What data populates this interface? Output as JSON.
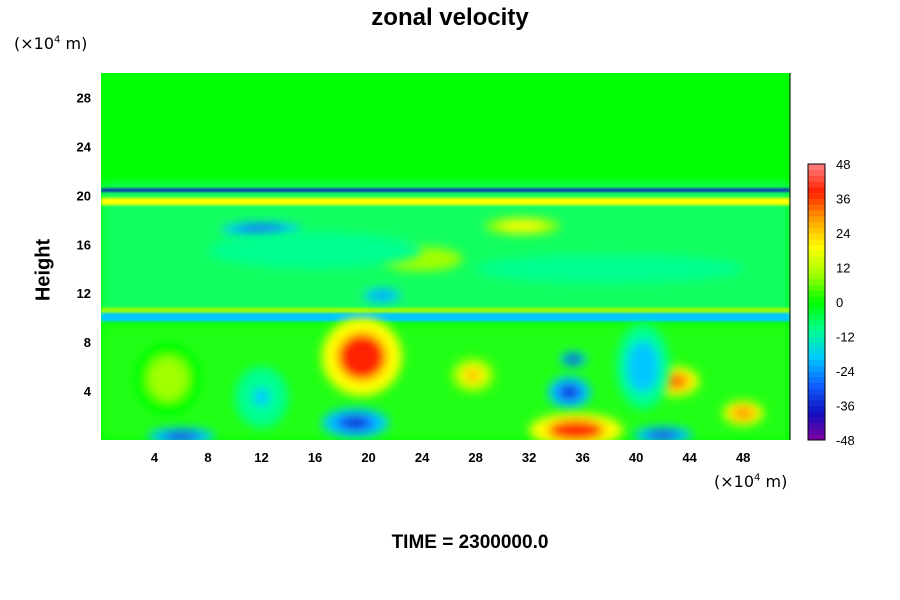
{
  "chart_data": {
    "type": "heatmap",
    "title": "zonal velocity",
    "ylabel": "Height",
    "xunit": "(×10",
    "xunit_exp": "4",
    "xunit_tail": " m)",
    "yunit": "(×10",
    "yunit_exp": "4",
    "yunit_tail": " m)",
    "footer": "TIME = 2300000.0",
    "xlim": [
      0,
      51.5
    ],
    "ylim": [
      0,
      30
    ],
    "x_ticks": [
      4,
      8,
      12,
      16,
      20,
      24,
      28,
      32,
      36,
      40,
      44,
      48
    ],
    "y_ticks": [
      4,
      8,
      12,
      16,
      20,
      24,
      28
    ],
    "colorbar": {
      "min": -48,
      "max": 48,
      "ticks": [
        48,
        36,
        24,
        12,
        0,
        -12,
        -24,
        -36,
        -48
      ],
      "colors": [
        "#8000a0",
        "#1010c0",
        "#1060ff",
        "#00c8ff",
        "#00ff90",
        "#00ff00",
        "#a0ff00",
        "#ffff00",
        "#ffa000",
        "#ff2000",
        "#ff8080"
      ]
    },
    "features": [
      {
        "x": 0,
        "y": 20.3,
        "w": 51.5,
        "h": 0.25,
        "value": -36,
        "kind": "band"
      },
      {
        "x": 0,
        "y": 19.2,
        "w": 51.5,
        "h": 0.6,
        "value": 18,
        "kind": "band"
      },
      {
        "x": 0,
        "y": 10.2,
        "w": 51.5,
        "h": 0.6,
        "value": 12,
        "kind": "band"
      },
      {
        "x": 0,
        "y": 9.7,
        "w": 51.5,
        "h": 0.7,
        "value": -18,
        "kind": "band"
      },
      {
        "x": 19.5,
        "y": 6.8,
        "rx": 3.0,
        "ry": 3.2,
        "value": 40
      },
      {
        "x": 27.8,
        "y": 5.3,
        "rx": 1.6,
        "ry": 1.4,
        "value": 26
      },
      {
        "x": 35.0,
        "y": 3.9,
        "rx": 1.6,
        "ry": 1.3,
        "value": -34
      },
      {
        "x": 35.3,
        "y": 6.6,
        "rx": 1.0,
        "ry": 0.6,
        "value": -40
      },
      {
        "x": 43.0,
        "y": 4.8,
        "rx": 1.7,
        "ry": 1.2,
        "value": 34
      },
      {
        "x": 48.0,
        "y": 2.2,
        "rx": 1.5,
        "ry": 1.0,
        "value": 30
      },
      {
        "x": 19.0,
        "y": 1.4,
        "rx": 2.5,
        "ry": 1.2,
        "value": -36
      },
      {
        "x": 6.0,
        "y": 0.3,
        "rx": 2.5,
        "ry": 0.7,
        "value": -38
      },
      {
        "x": 35.5,
        "y": 0.8,
        "rx": 3.5,
        "ry": 1.4,
        "value": 40
      },
      {
        "x": 42.0,
        "y": 0.4,
        "rx": 2.2,
        "ry": 0.7,
        "value": -38
      },
      {
        "x": 12.0,
        "y": 17.2,
        "rx": 3.0,
        "ry": 0.6,
        "value": -30
      },
      {
        "x": 21.0,
        "y": 11.8,
        "rx": 1.4,
        "ry": 0.6,
        "value": -28
      },
      {
        "x": 31.5,
        "y": 17.5,
        "rx": 2.8,
        "ry": 0.7,
        "value": 22
      },
      {
        "x": 5.0,
        "y": 5.0,
        "rx": 2.5,
        "ry": 3.0,
        "value": 8
      },
      {
        "x": 12.0,
        "y": 3.5,
        "rx": 2.0,
        "ry": 2.5,
        "value": -16
      },
      {
        "x": 40.5,
        "y": 6.0,
        "rx": 2.0,
        "ry": 3.5,
        "value": -18
      },
      {
        "x": 24.0,
        "y": 14.8,
        "rx": 3.0,
        "ry": 1.0,
        "value": 10
      },
      {
        "x": 16.0,
        "y": 15.5,
        "rx": 8.0,
        "ry": 1.5,
        "value": -10
      },
      {
        "x": 38.0,
        "y": 14.0,
        "rx": 10.0,
        "ry": 1.2,
        "value": -12
      }
    ]
  }
}
